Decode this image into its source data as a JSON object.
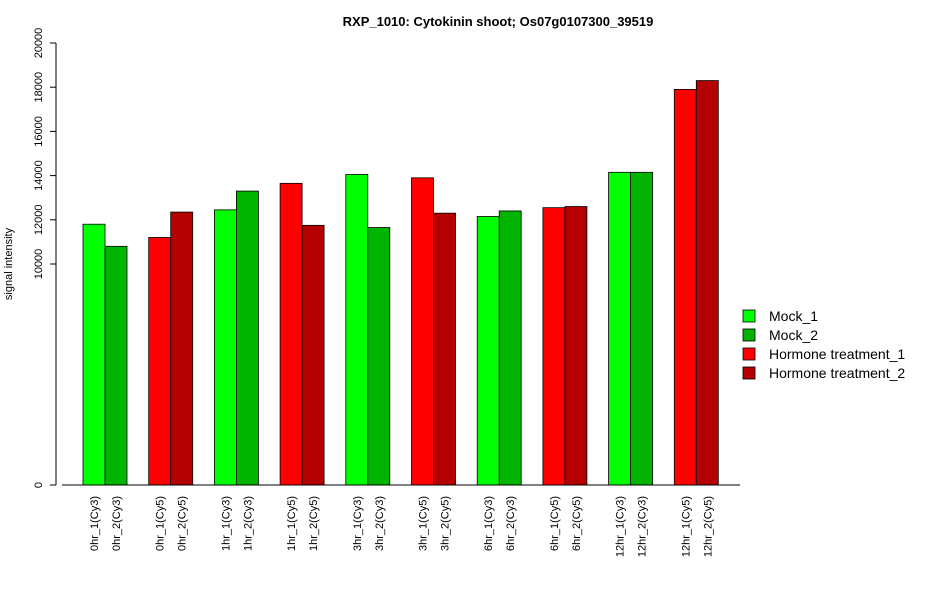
{
  "chart_data": {
    "type": "bar",
    "title": "RXP_1010: Cytokinin shoot; Os07g0107300_39519",
    "xlabel": "",
    "ylabel": "signal intensity",
    "yticks": [
      0,
      10000,
      12000,
      14000,
      16000,
      18000,
      20000
    ],
    "ylim": [
      0,
      20000
    ],
    "grid": false,
    "legend_position": "right",
    "categories": [
      "0hr_1(Cy3)",
      "0hr_2(Cy3)",
      "0hr_1(Cy5)",
      "0hr_2(Cy5)",
      "1hr_1(Cy3)",
      "1hr_2(Cy3)",
      "1hr_1(Cy5)",
      "1hr_2(Cy5)",
      "3hr_1(Cy3)",
      "3hr_2(Cy3)",
      "3hr_1(Cy5)",
      "3hr_2(Cy5)",
      "6hr_1(Cy3)",
      "6hr_2(Cy3)",
      "6hr_1(Cy5)",
      "6hr_2(Cy5)",
      "12hr_1(Cy3)",
      "12hr_2(Cy3)",
      "12hr_1(Cy5)",
      "12hr_2(Cy5)"
    ],
    "values": [
      11800,
      10800,
      11200,
      12350,
      12450,
      13300,
      13650,
      11750,
      14050,
      11650,
      13900,
      12300,
      12150,
      12400,
      12550,
      12600,
      14150,
      14150,
      17900,
      18300
    ],
    "bar_series": [
      0,
      1,
      2,
      3,
      0,
      1,
      2,
      3,
      0,
      1,
      2,
      3,
      0,
      1,
      2,
      3,
      0,
      1,
      2,
      3
    ],
    "series": [
      {
        "name": "Mock_1",
        "color": "#00ff00"
      },
      {
        "name": "Mock_2",
        "color": "#00b400"
      },
      {
        "name": "Hormone treatment_1",
        "color": "#ff0000"
      },
      {
        "name": "Hormone treatment_2",
        "color": "#b40000"
      }
    ]
  }
}
